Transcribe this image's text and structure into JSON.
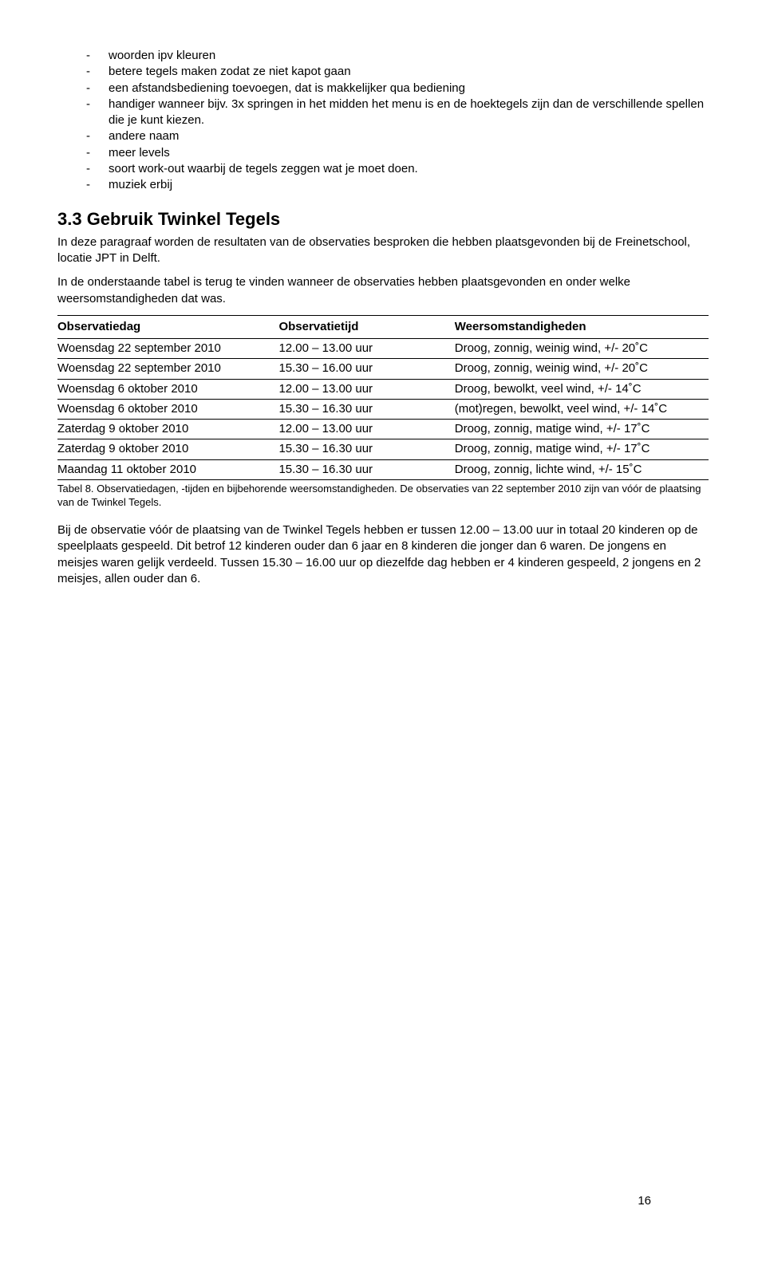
{
  "bulletList": [
    "woorden ipv kleuren",
    "betere tegels maken zodat ze niet kapot gaan",
    "een afstandsbediening toevoegen, dat is makkelijker qua bediening",
    "handiger wanneer bijv. 3x springen in het midden het menu is en de hoektegels zijn dan de verschillende spellen die je kunt kiezen.",
    "andere naam",
    "meer levels",
    "soort work-out waarbij de tegels zeggen wat je moet doen.",
    "muziek erbij"
  ],
  "heading": "3.3 Gebruik Twinkel Tegels",
  "intro1": "In deze paragraaf worden de resultaten van de observaties besproken die hebben plaatsgevonden bij de Freinetschool, locatie JPT in Delft.",
  "intro2": "In de onderstaande tabel is terug te vinden wanneer de observaties hebben plaatsgevonden en onder welke weersomstandigheden dat was.",
  "table": {
    "headers": [
      "Observatiedag",
      "Observatietijd",
      "Weersomstandigheden"
    ],
    "rows": [
      [
        "Woensdag 22 september 2010",
        "12.00 – 13.00 uur",
        "Droog, zonnig, weinig wind, +/- 20˚C"
      ],
      [
        "Woensdag 22 september 2010",
        "15.30 – 16.00 uur",
        "Droog, zonnig, weinig wind, +/- 20˚C"
      ],
      [
        "Woensdag 6 oktober 2010",
        "12.00 – 13.00 uur",
        "Droog, bewolkt, veel wind, +/- 14˚C"
      ],
      [
        "Woensdag 6 oktober 2010",
        "15.30 – 16.30 uur",
        "(mot)regen, bewolkt, veel wind, +/- 14˚C"
      ],
      [
        "Zaterdag 9 oktober 2010",
        "12.00 – 13.00 uur",
        "Droog, zonnig, matige wind, +/- 17˚C"
      ],
      [
        "Zaterdag 9 oktober 2010",
        "15.30 – 16.30 uur",
        "Droog, zonnig, matige wind, +/- 17˚C"
      ],
      [
        "Maandag 11 oktober 2010",
        "15.30 – 16.30 uur",
        "Droog, zonnig, lichte wind, +/- 15˚C"
      ]
    ]
  },
  "tableCaption": "Tabel 8. Observatiedagen, -tijden en bijbehorende weersomstandigheden. De observaties van 22 september 2010 zijn van vóór de plaatsing van de Twinkel Tegels.",
  "afterPara": "Bij de observatie vóór de plaatsing van de Twinkel Tegels hebben er tussen 12.00 – 13.00 uur in totaal 20 kinderen op de speelplaats gespeeld. Dit betrof 12 kinderen ouder dan 6 jaar en 8 kinderen die jonger dan 6 waren. De jongens en meisjes waren gelijk verdeeld. Tussen 15.30 – 16.00 uur op diezelfde dag hebben er 4 kinderen gespeeld, 2 jongens en 2 meisjes, allen ouder dan 6.",
  "pageNumber": "16"
}
